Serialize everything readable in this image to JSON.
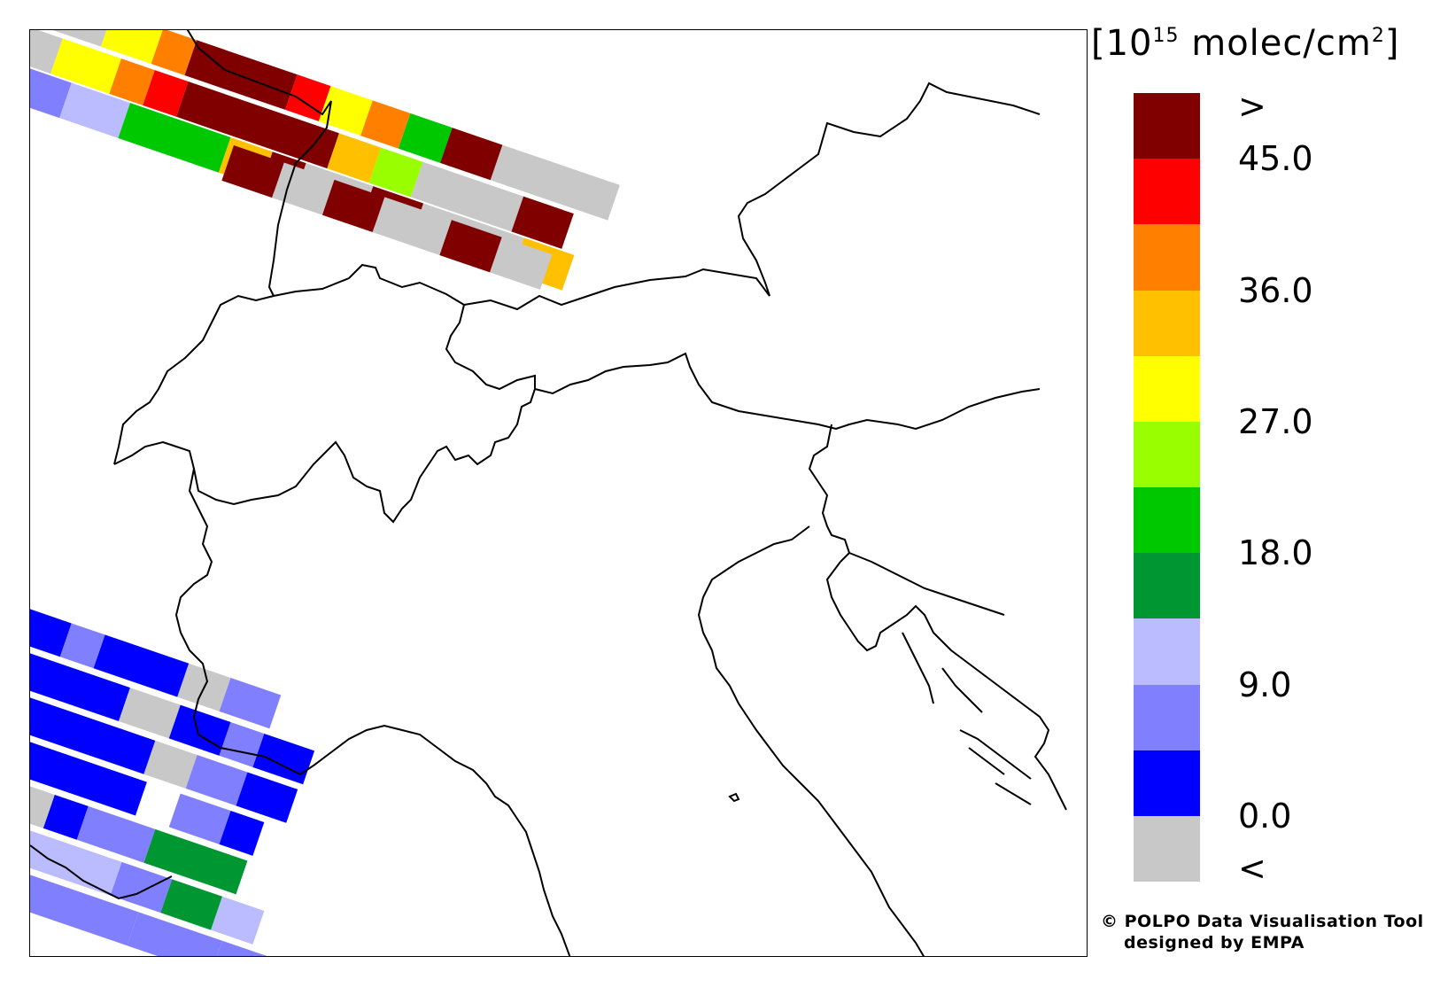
{
  "units": {
    "open": "[",
    "base": "10",
    "exponent": "15",
    "unit": " molec/cm",
    "unit_exp": "2",
    "close": "]"
  },
  "legend": {
    "colors": [
      "#800000",
      "#ff0000",
      "#ff8000",
      "#ffc000",
      "#ffff00",
      "#99ff00",
      "#00c800",
      "#009632",
      "#bbbbff",
      "#8080ff",
      "#0000ff",
      "#c8c8c8"
    ],
    "labels": [
      ">",
      "45.0",
      "36.0",
      "27.0",
      "18.0",
      "9.0",
      "0.0",
      "<"
    ],
    "boundaries": [
      {
        "text": ">",
        "index": 0
      },
      {
        "text": "45.0",
        "index": 1
      },
      {
        "text": "36.0",
        "index": 3
      },
      {
        "text": "27.0",
        "index": 5
      },
      {
        "text": "18.0",
        "index": 7
      },
      {
        "text": "9.0",
        "index": 9
      },
      {
        "text": "0.0",
        "index": 11
      },
      {
        "text": "<",
        "index": 12
      }
    ]
  },
  "credit": {
    "line1": "© POLPO Data Visualisation Tool",
    "line2": "designed by EMPA"
  }
}
